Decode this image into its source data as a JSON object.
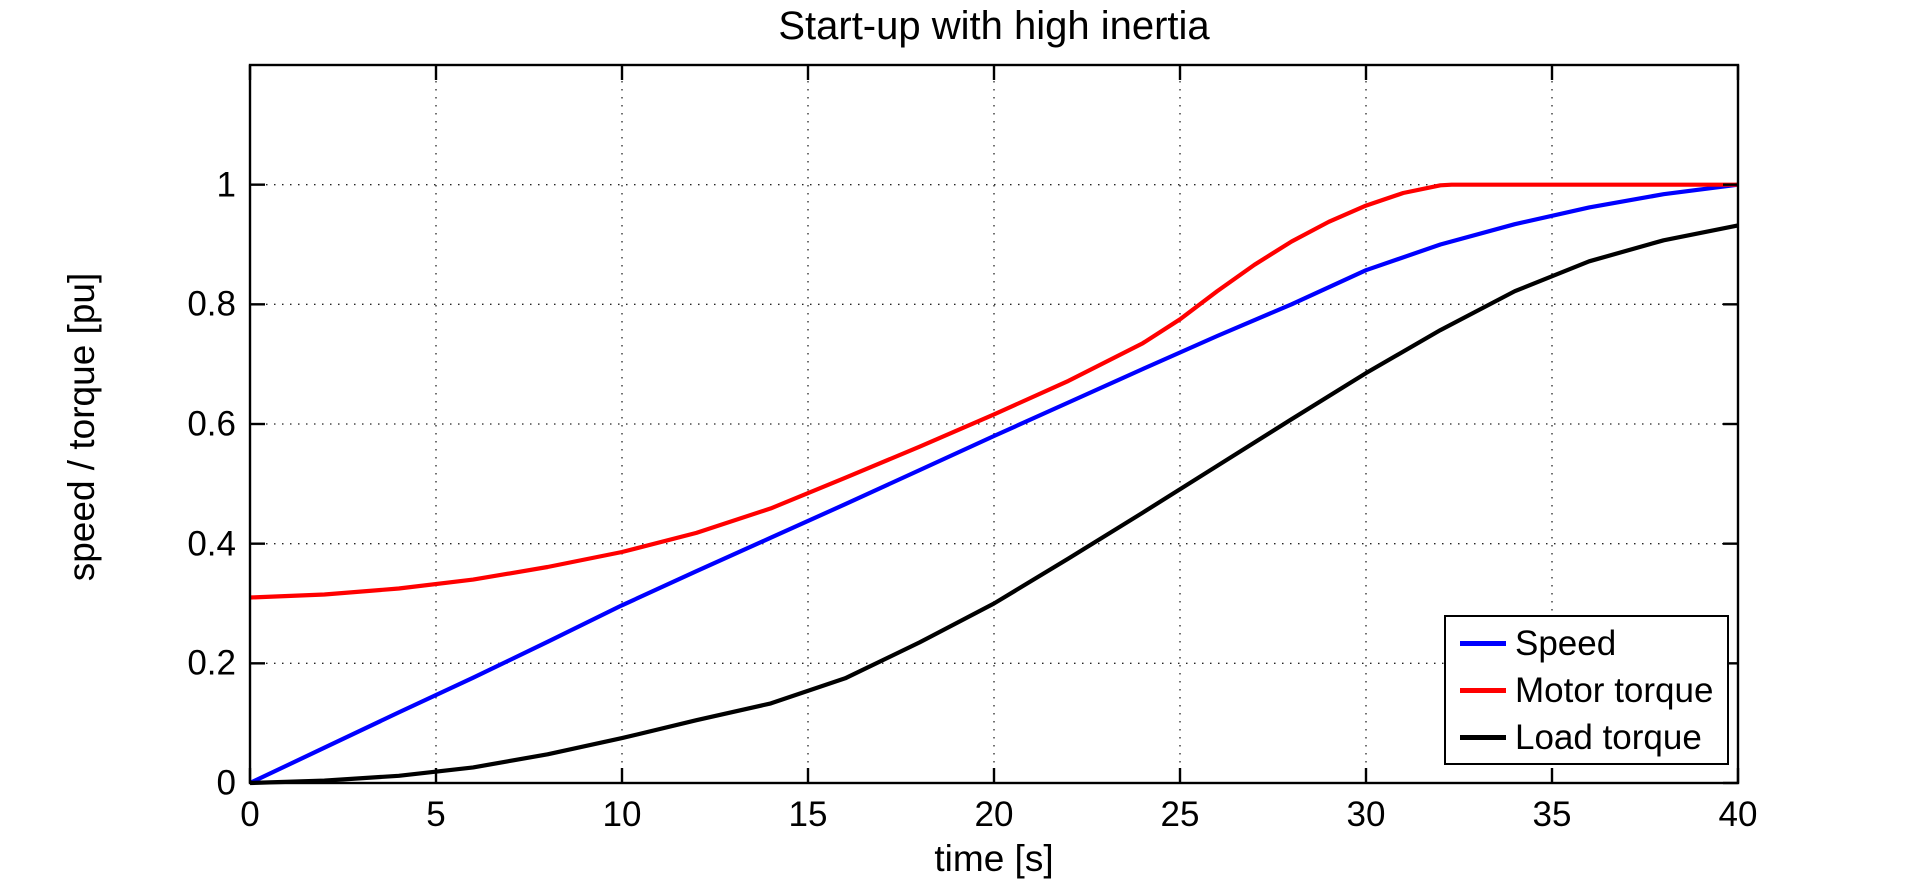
{
  "chart_data": {
    "type": "line",
    "title": "Start-up with high inertia",
    "xlabel": "time [s]",
    "ylabel": "speed / torque [pu]",
    "xlim": [
      0,
      40
    ],
    "ylim": [
      0,
      1.2
    ],
    "x_ticks": [
      0,
      5,
      10,
      15,
      20,
      25,
      30,
      35,
      40
    ],
    "y_ticks": [
      0,
      0.2,
      0.4,
      0.6,
      0.8,
      1
    ],
    "grid": "dotted",
    "axis_color": "#000000",
    "background": "#ffffff",
    "legend_position": "bottom-right-inside",
    "series": [
      {
        "name": "Speed",
        "color": "#0000ff",
        "points": [
          [
            0,
            0
          ],
          [
            2,
            0.059
          ],
          [
            4,
            0.118
          ],
          [
            6,
            0.176
          ],
          [
            8,
            0.236
          ],
          [
            10,
            0.297
          ],
          [
            12,
            0.354
          ],
          [
            14,
            0.41
          ],
          [
            16,
            0.466
          ],
          [
            18,
            0.523
          ],
          [
            20,
            0.58
          ],
          [
            22,
            0.636
          ],
          [
            24,
            0.692
          ],
          [
            26,
            0.747
          ],
          [
            28,
            0.8
          ],
          [
            30,
            0.857
          ],
          [
            32,
            0.9
          ],
          [
            34,
            0.934
          ],
          [
            36,
            0.962
          ],
          [
            38,
            0.984
          ],
          [
            40,
            1.0
          ]
        ]
      },
      {
        "name": "Motor torque",
        "color": "#ff0000",
        "points": [
          [
            0,
            0.31
          ],
          [
            2,
            0.315
          ],
          [
            4,
            0.325
          ],
          [
            6,
            0.34
          ],
          [
            8,
            0.361
          ],
          [
            10,
            0.386
          ],
          [
            12,
            0.418
          ],
          [
            14,
            0.459
          ],
          [
            16,
            0.51
          ],
          [
            18,
            0.562
          ],
          [
            20,
            0.616
          ],
          [
            22,
            0.672
          ],
          [
            24,
            0.735
          ],
          [
            25,
            0.775
          ],
          [
            26,
            0.822
          ],
          [
            27,
            0.866
          ],
          [
            28,
            0.905
          ],
          [
            29,
            0.938
          ],
          [
            30,
            0.965
          ],
          [
            31,
            0.986
          ],
          [
            32,
            0.999
          ],
          [
            32.3,
            1.0
          ],
          [
            34,
            1.0
          ],
          [
            36,
            1.0
          ],
          [
            38,
            1.0
          ],
          [
            40,
            1.0
          ]
        ]
      },
      {
        "name": "Load torque",
        "color": "#000000",
        "points": [
          [
            0,
            0
          ],
          [
            2,
            0.004
          ],
          [
            4,
            0.012
          ],
          [
            6,
            0.026
          ],
          [
            8,
            0.048
          ],
          [
            10,
            0.075
          ],
          [
            12,
            0.105
          ],
          [
            14,
            0.133
          ],
          [
            16,
            0.175
          ],
          [
            18,
            0.235
          ],
          [
            20,
            0.3
          ],
          [
            22,
            0.375
          ],
          [
            24,
            0.452
          ],
          [
            26,
            0.53
          ],
          [
            28,
            0.608
          ],
          [
            30,
            0.685
          ],
          [
            32,
            0.757
          ],
          [
            34,
            0.822
          ],
          [
            36,
            0.872
          ],
          [
            38,
            0.907
          ],
          [
            40,
            0.932
          ]
        ]
      }
    ]
  }
}
